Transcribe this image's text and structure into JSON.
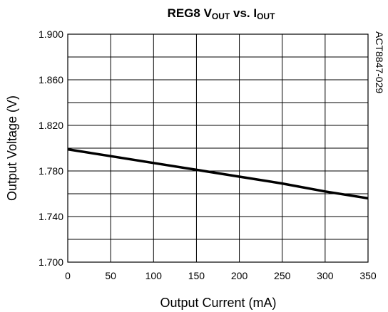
{
  "chart_data": {
    "type": "line",
    "title": {
      "main": "REG8 V",
      "sub1": "OUT",
      "mid": " vs. I",
      "sub2": "OUT"
    },
    "xlabel": "Output Current (mA)",
    "ylabel": "Output Voltage (V)",
    "figure_code": "ACT8847-029",
    "xlim": [
      0,
      350
    ],
    "ylim": [
      1.7,
      1.9
    ],
    "x_ticks": [
      0,
      50,
      100,
      150,
      200,
      250,
      300,
      350
    ],
    "x_tick_labels": [
      "0",
      "50",
      "100",
      "150",
      "200",
      "250",
      "300",
      "350"
    ],
    "y_ticks": [
      1.7,
      1.74,
      1.78,
      1.82,
      1.86,
      1.9
    ],
    "y_tick_labels": [
      "1.700",
      "1.740",
      "1.780",
      "1.820",
      "1.860",
      "1.900"
    ],
    "grid": true,
    "series": [
      {
        "x": [
          0,
          50,
          100,
          150,
          200,
          250,
          300,
          350
        ],
        "y": [
          1.799,
          1.793,
          1.787,
          1.781,
          1.775,
          1.769,
          1.762,
          1.756
        ]
      }
    ]
  }
}
